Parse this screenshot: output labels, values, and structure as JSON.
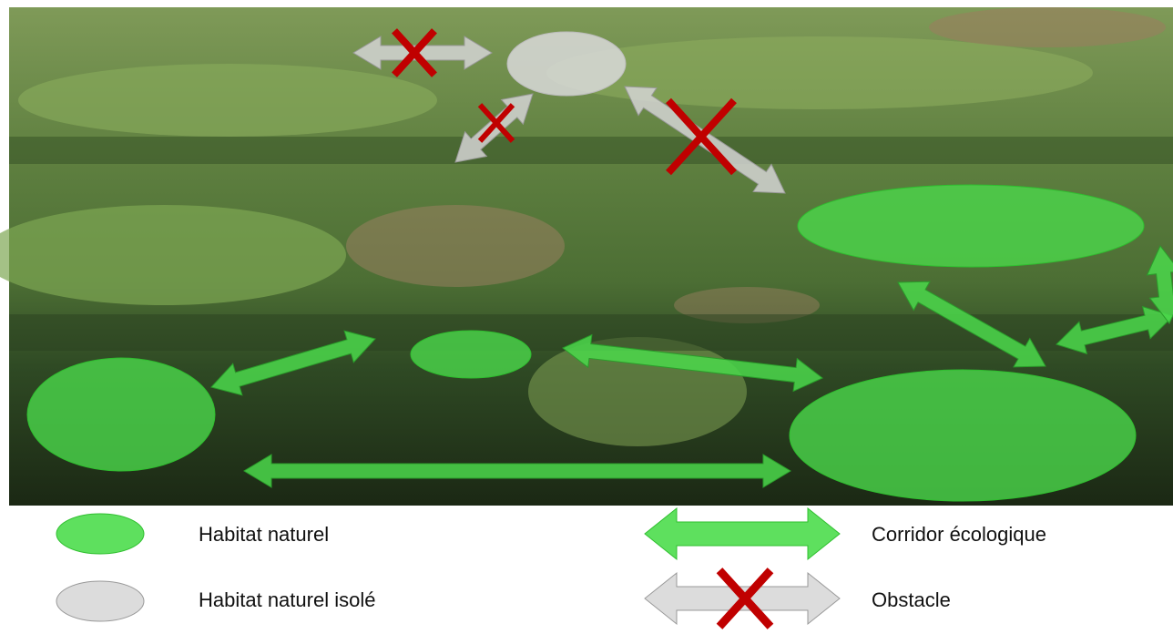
{
  "legend": {
    "habitat": "Habitat naturel",
    "isolated": "Habitat naturel isolé",
    "corridor": "Corridor écologique",
    "obstacle": "Obstacle"
  }
}
